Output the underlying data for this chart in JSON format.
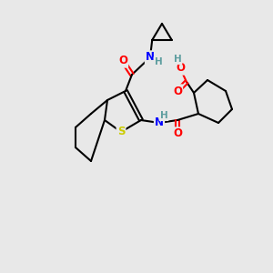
{
  "background_color": "#e8e8e8",
  "atom_colors": {
    "C": "#000000",
    "N": "#0000ff",
    "O": "#ff0000",
    "S": "#cccc00",
    "H": "#5f9ea0"
  },
  "bond_color": "#000000",
  "bond_width": 1.5,
  "font_size": 8.5
}
